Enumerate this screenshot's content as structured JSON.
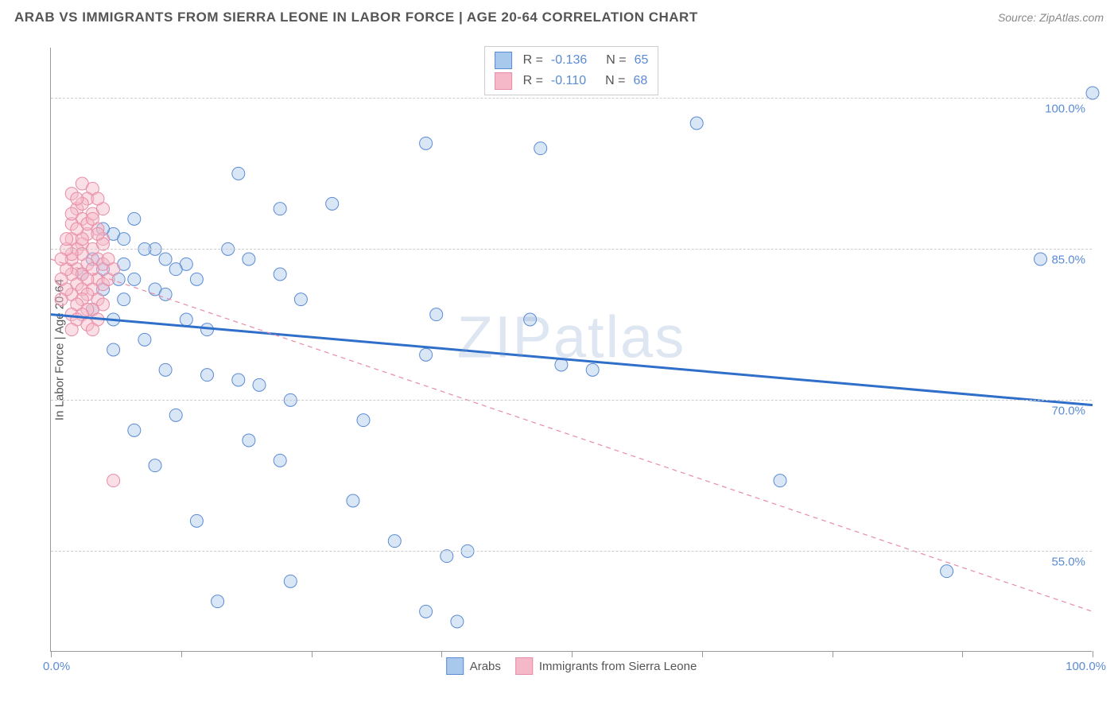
{
  "header": {
    "title": "ARAB VS IMMIGRANTS FROM SIERRA LEONE IN LABOR FORCE | AGE 20-64 CORRELATION CHART",
    "source": "Source: ZipAtlas.com"
  },
  "chart": {
    "type": "scatter",
    "watermark": "ZIPatlas",
    "y_axis_title": "In Labor Force | Age 20-64",
    "xlim": [
      0,
      100
    ],
    "ylim": [
      45,
      105
    ],
    "x_ticks": [
      0,
      12.5,
      25,
      37.5,
      50,
      62.5,
      75,
      87.5,
      100
    ],
    "x_labels_shown": {
      "0": "0.0%",
      "100": "100.0%"
    },
    "y_gridlines": [
      55,
      70,
      85,
      100
    ],
    "y_labels": {
      "55": "55.0%",
      "70": "70.0%",
      "85": "85.0%",
      "100": "100.0%"
    },
    "background_color": "#ffffff",
    "grid_color": "#cccccc",
    "axis_color": "#999999",
    "label_color": "#5b8bd4",
    "marker_radius": 8,
    "marker_opacity": 0.45,
    "series": [
      {
        "name": "Arabs",
        "color_fill": "#a8c8ec",
        "color_stroke": "#5b8bd4",
        "R": "-0.136",
        "N": "65",
        "trend": {
          "x1": 0,
          "y1": 78.5,
          "x2": 100,
          "y2": 69.5,
          "stroke": "#2f6fc9",
          "width": 3,
          "dash": "none"
        },
        "points": [
          [
            100,
            100.5
          ],
          [
            62,
            97.5
          ],
          [
            47,
            95
          ],
          [
            36,
            95.5
          ],
          [
            18,
            92.5
          ],
          [
            27,
            89.5
          ],
          [
            22,
            89
          ],
          [
            8,
            88
          ],
          [
            6,
            86.5
          ],
          [
            10,
            85
          ],
          [
            11,
            84
          ],
          [
            9,
            85
          ],
          [
            95,
            84
          ],
          [
            13,
            83.5
          ],
          [
            12,
            83
          ],
          [
            7,
            83.5
          ],
          [
            5,
            83
          ],
          [
            6.5,
            82
          ],
          [
            8,
            82
          ],
          [
            10,
            81
          ],
          [
            11,
            80.5
          ],
          [
            14,
            82
          ],
          [
            22,
            82.5
          ],
          [
            24,
            80
          ],
          [
            13,
            78
          ],
          [
            15,
            77
          ],
          [
            37,
            78.5
          ],
          [
            46,
            78
          ],
          [
            9,
            76
          ],
          [
            6,
            75
          ],
          [
            49,
            73.5
          ],
          [
            52,
            73
          ],
          [
            11,
            73
          ],
          [
            15,
            72.5
          ],
          [
            18,
            72
          ],
          [
            20,
            71.5
          ],
          [
            23,
            70
          ],
          [
            36,
            74.5
          ],
          [
            30,
            68
          ],
          [
            12,
            68.5
          ],
          [
            8,
            67
          ],
          [
            19,
            66
          ],
          [
            22,
            64
          ],
          [
            10,
            63.5
          ],
          [
            70,
            62
          ],
          [
            29,
            60
          ],
          [
            14,
            58
          ],
          [
            33,
            56
          ],
          [
            38,
            54.5
          ],
          [
            40,
            55
          ],
          [
            23,
            52
          ],
          [
            86,
            53
          ],
          [
            36,
            49
          ],
          [
            39,
            48
          ],
          [
            16,
            50
          ],
          [
            5,
            81
          ],
          [
            4,
            84
          ],
          [
            3,
            82.5
          ],
          [
            7,
            80
          ],
          [
            6,
            78
          ],
          [
            17,
            85
          ],
          [
            19,
            84
          ],
          [
            5,
            87
          ],
          [
            7,
            86
          ],
          [
            4,
            79
          ]
        ]
      },
      {
        "name": "Immigrants from Sierra Leone",
        "color_fill": "#f5b8c8",
        "color_stroke": "#e88ca6",
        "R": "-0.110",
        "N": "68",
        "trend": {
          "x1": 0,
          "y1": 84,
          "x2": 100,
          "y2": 49,
          "stroke": "#e88ca6",
          "width": 1.2,
          "dash": "6,5"
        },
        "points": [
          [
            3,
            91.5
          ],
          [
            4,
            91
          ],
          [
            2,
            90.5
          ],
          [
            3.5,
            90
          ],
          [
            2.5,
            89
          ],
          [
            4,
            88.5
          ],
          [
            3,
            88
          ],
          [
            2,
            87.5
          ],
          [
            4.5,
            87
          ],
          [
            3.5,
            86.5
          ],
          [
            2,
            86
          ],
          [
            5,
            86
          ],
          [
            3,
            85.5
          ],
          [
            4,
            85
          ],
          [
            2.5,
            85
          ],
          [
            3,
            84.5
          ],
          [
            4.5,
            84
          ],
          [
            2,
            84
          ],
          [
            5,
            83.5
          ],
          [
            3.5,
            83.5
          ],
          [
            2.5,
            83
          ],
          [
            4,
            83
          ],
          [
            3,
            82.5
          ],
          [
            2,
            82.5
          ],
          [
            4.5,
            82
          ],
          [
            3.5,
            82
          ],
          [
            5,
            81.5
          ],
          [
            2.5,
            81.5
          ],
          [
            3,
            81
          ],
          [
            4,
            81
          ],
          [
            2,
            80.5
          ],
          [
            3.5,
            80.5
          ],
          [
            4.5,
            80
          ],
          [
            3,
            80
          ],
          [
            2.5,
            79.5
          ],
          [
            5,
            79.5
          ],
          [
            4,
            79
          ],
          [
            3.5,
            79
          ],
          [
            2,
            78.5
          ],
          [
            3,
            78.5
          ],
          [
            4.5,
            78
          ],
          [
            2.5,
            78
          ],
          [
            3.5,
            77.5
          ],
          [
            4,
            77
          ],
          [
            2,
            84.5
          ],
          [
            5,
            85.5
          ],
          [
            3,
            86
          ],
          [
            4.5,
            86.5
          ],
          [
            2.5,
            87
          ],
          [
            3.5,
            87.5
          ],
          [
            4,
            88
          ],
          [
            2,
            88.5
          ],
          [
            5,
            89
          ],
          [
            3,
            89.5
          ],
          [
            4.5,
            90
          ],
          [
            2.5,
            90
          ],
          [
            1.5,
            85
          ],
          [
            1.5,
            83
          ],
          [
            1.5,
            81
          ],
          [
            1,
            84
          ],
          [
            1,
            82
          ],
          [
            1.5,
            86
          ],
          [
            1,
            80
          ],
          [
            2,
            77
          ],
          [
            5.5,
            84
          ],
          [
            5.5,
            82
          ],
          [
            6,
            83
          ],
          [
            6,
            62
          ]
        ]
      }
    ],
    "legend_top": {
      "rows": [
        {
          "swatch_fill": "#a8c8ec",
          "swatch_stroke": "#5b8bd4",
          "r_label": "R =",
          "r_val": "-0.136",
          "n_label": "N =",
          "n_val": "65"
        },
        {
          "swatch_fill": "#f5b8c8",
          "swatch_stroke": "#e88ca6",
          "r_label": "R =",
          "r_val": "-0.110",
          "n_label": "N =",
          "n_val": "68"
        }
      ]
    },
    "legend_bottom": [
      {
        "swatch_fill": "#a8c8ec",
        "swatch_stroke": "#5b8bd4",
        "label": "Arabs"
      },
      {
        "swatch_fill": "#f5b8c8",
        "swatch_stroke": "#e88ca6",
        "label": "Immigrants from Sierra Leone"
      }
    ]
  }
}
